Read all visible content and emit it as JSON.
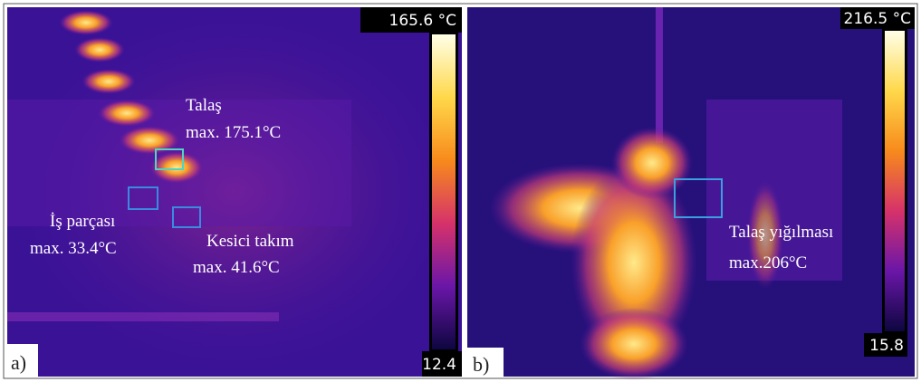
{
  "panels": [
    {
      "label": "a)",
      "scale_max": "165.6 °C",
      "scale_min": "12.4",
      "annotations": [
        {
          "title": "Talaş",
          "value": "max. 175.1°C"
        },
        {
          "title": "İş parçası",
          "value": "max. 33.4°C"
        },
        {
          "title": "Kesici takım",
          "value": "max. 41.6°C"
        }
      ]
    },
    {
      "label": "b)",
      "scale_max": "216.5 °C",
      "scale_min": "15.8",
      "annotations": [
        {
          "title": "Talaş yığılması",
          "value": "max.206°C"
        }
      ]
    }
  ]
}
